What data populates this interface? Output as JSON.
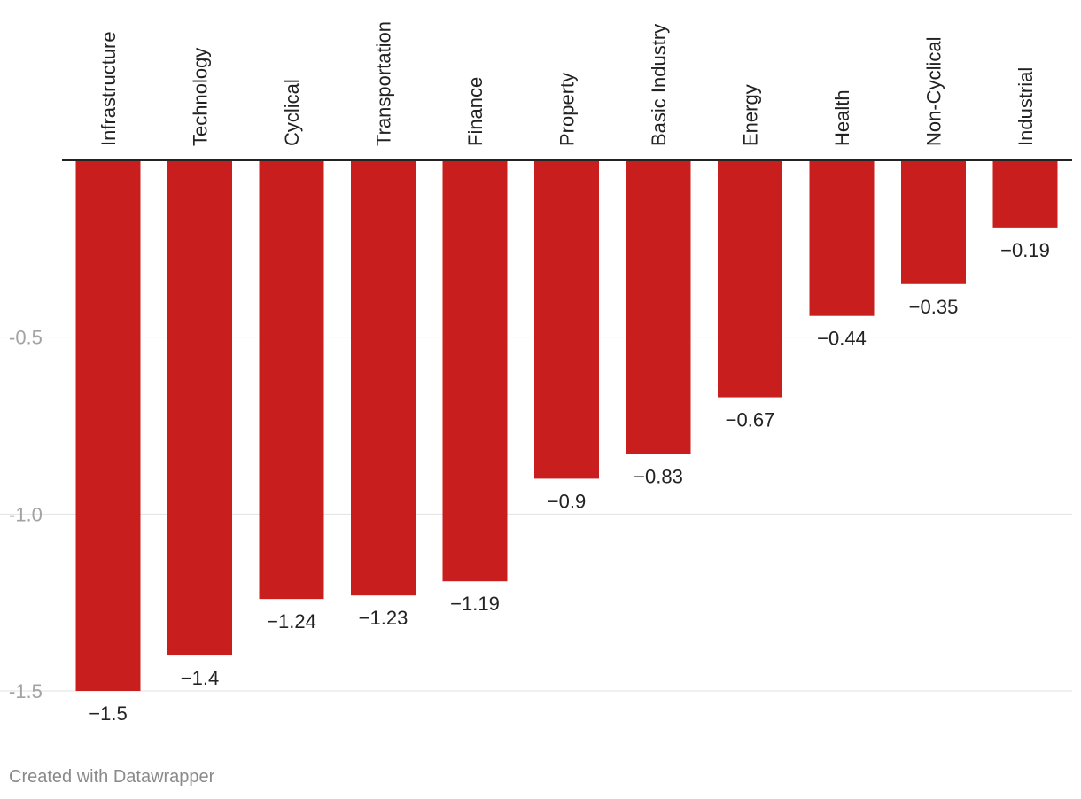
{
  "chart_data": {
    "type": "bar",
    "orientation": "vertical",
    "categories": [
      "Infrastructure",
      "Technology",
      "Cyclical",
      "Transportation",
      "Finance",
      "Property",
      "Basic Industry",
      "Energy",
      "Health",
      "Non-Cyclical",
      "Industrial"
    ],
    "values": [
      -1.5,
      -1.4,
      -1.24,
      -1.23,
      -1.19,
      -0.9,
      -0.83,
      -0.67,
      -0.44,
      -0.35,
      -0.19
    ],
    "value_labels": [
      "−1.5",
      "−1.4",
      "−1.24",
      "−1.23",
      "−1.19",
      "−0.9",
      "−0.83",
      "−0.67",
      "−0.44",
      "−0.35",
      "−0.19"
    ],
    "ylim": [
      -1.5,
      0
    ],
    "yticks": [
      -0.5,
      -1.0,
      -1.5
    ],
    "ytick_labels": [
      "-0.5",
      "-1.0",
      "-1.5"
    ],
    "title": "",
    "xlabel": "",
    "ylabel": "",
    "grid": true,
    "legend": "none",
    "bar_color": "#c81e1e"
  },
  "credit": "Created with Datawrapper",
  "colors": {
    "bar": "#c81e1e",
    "baseline": "#222222",
    "grid": "#e2e2e2",
    "tick_text": "#a3a3a3"
  }
}
